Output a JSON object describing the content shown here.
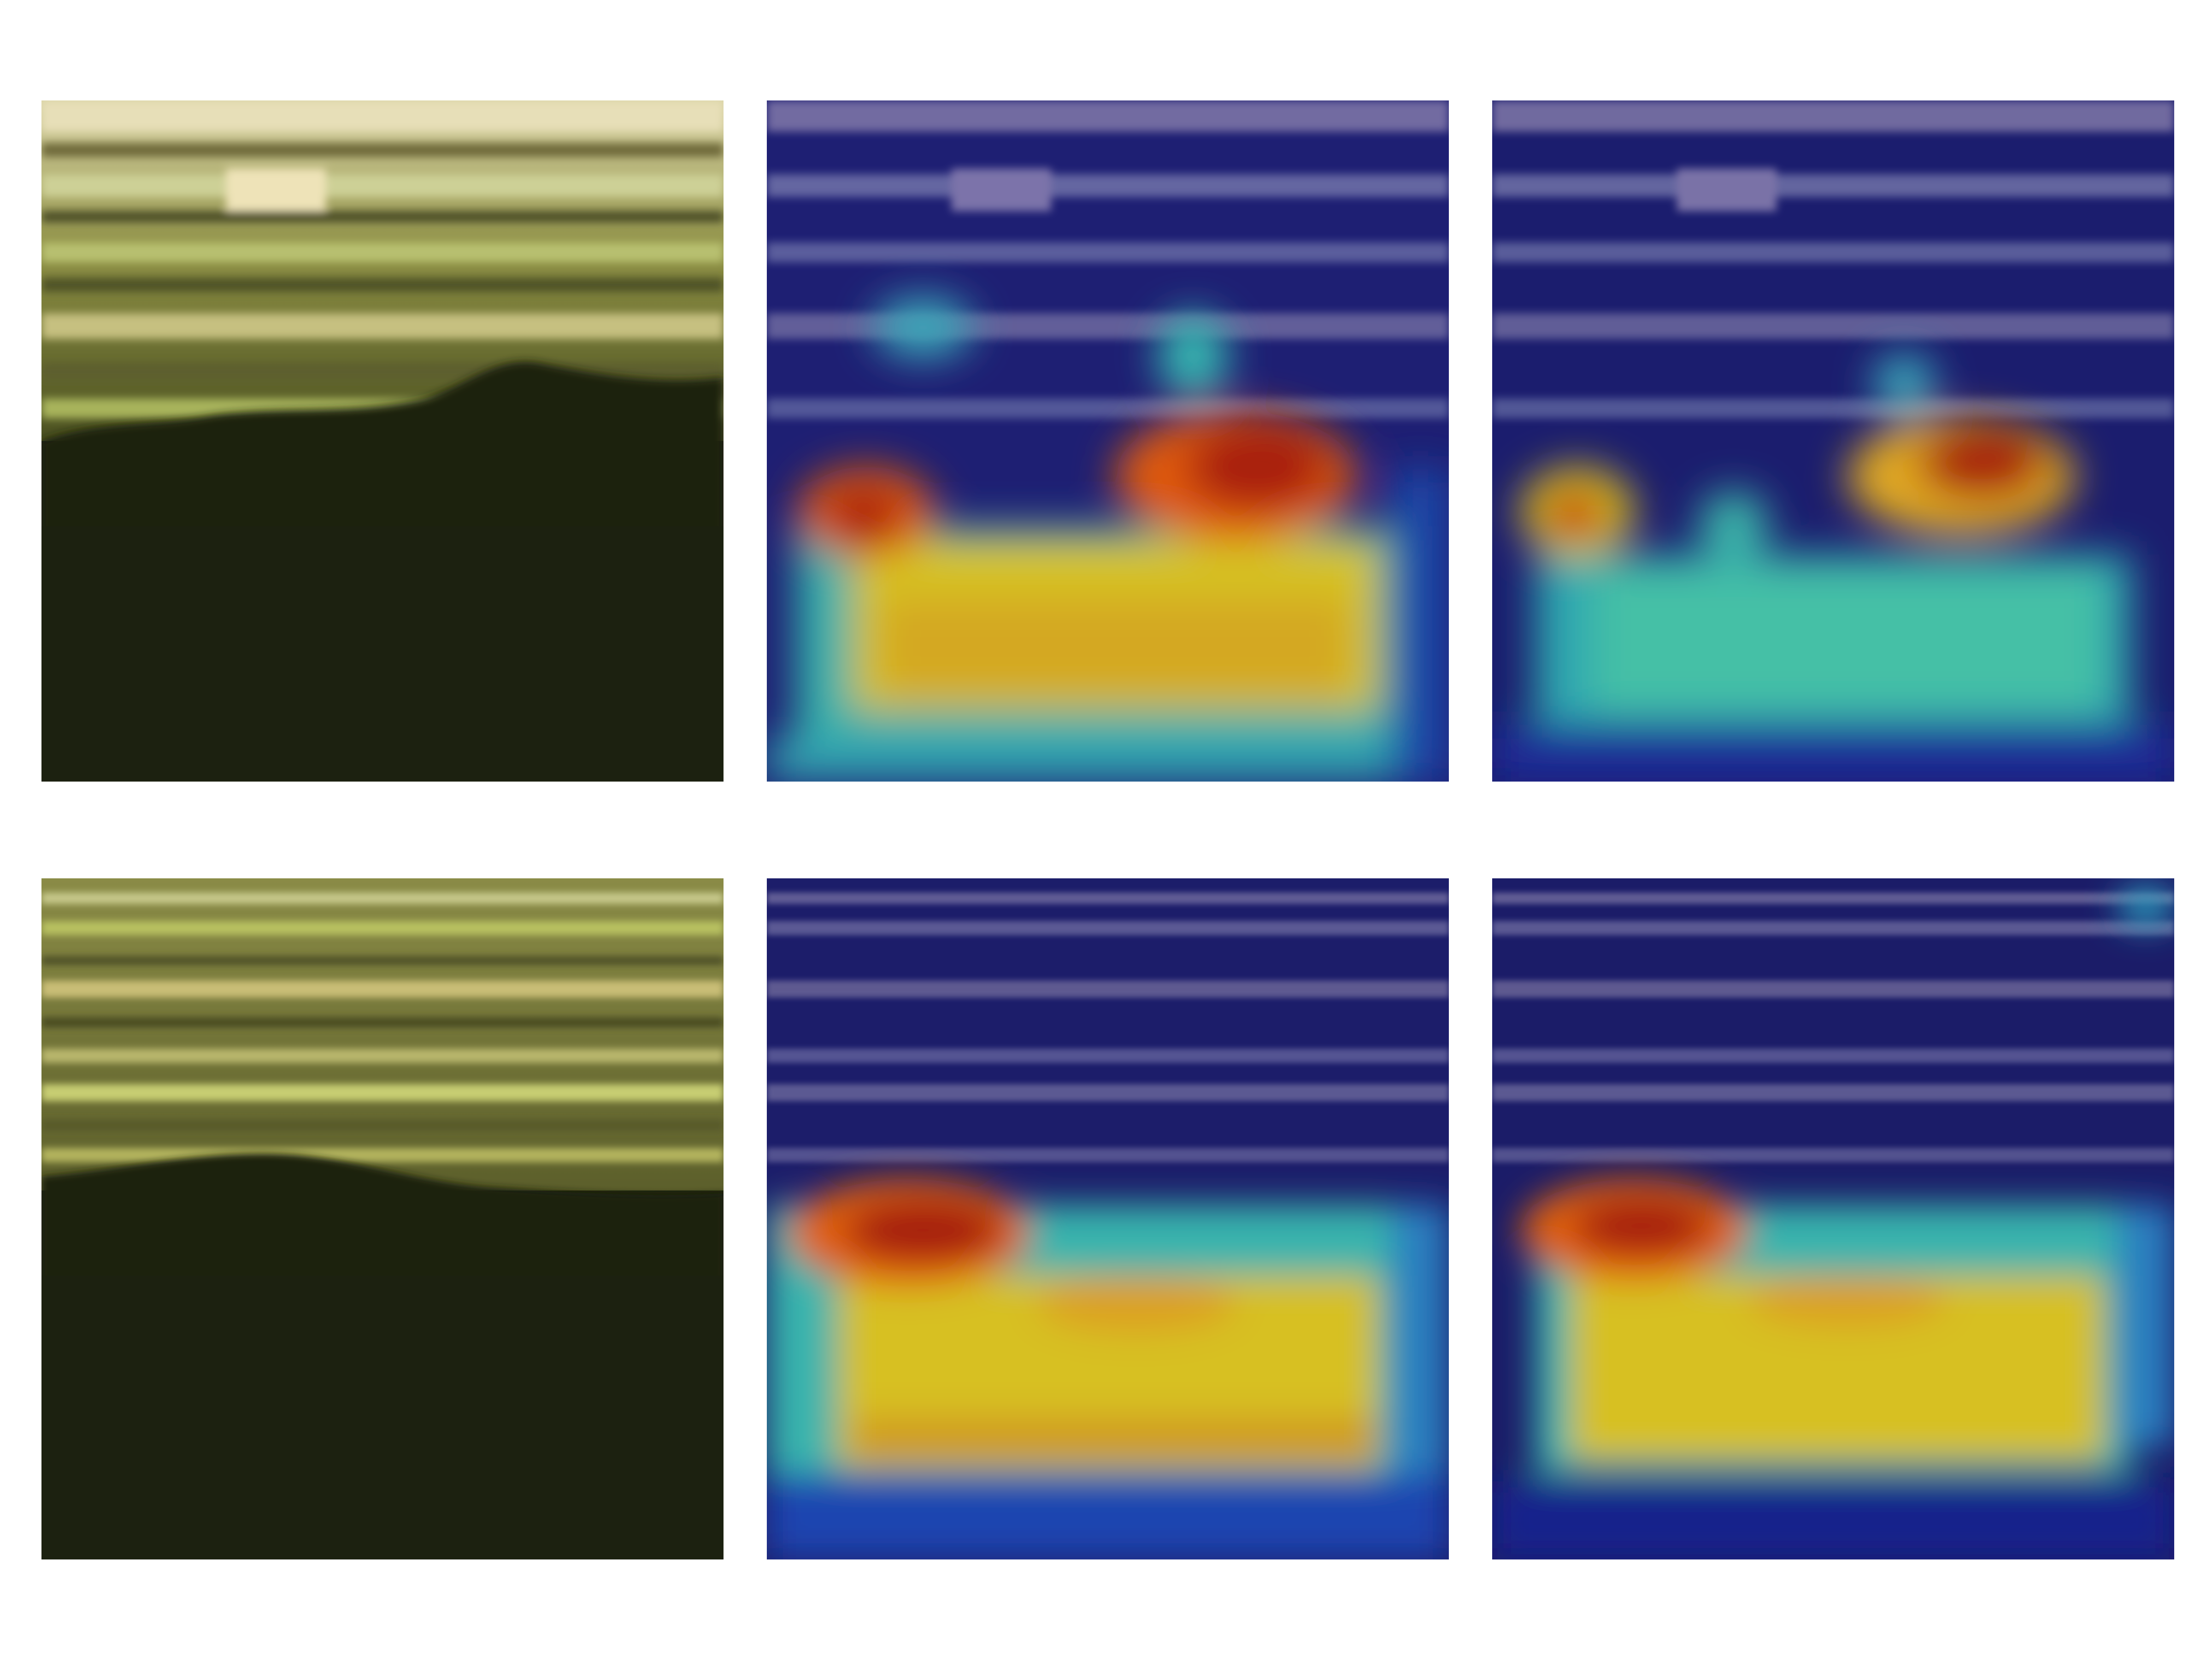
{
  "figure": {
    "rows": 2,
    "columns": 3,
    "panels": [
      {
        "row": 1,
        "column": 1,
        "kind": "original-micrograph"
      },
      {
        "row": 1,
        "column": 2,
        "kind": "heatmap-overlay"
      },
      {
        "row": 1,
        "column": 3,
        "kind": "heatmap-overlay"
      },
      {
        "row": 2,
        "column": 1,
        "kind": "original-micrograph"
      },
      {
        "row": 2,
        "column": 2,
        "kind": "heatmap-overlay"
      },
      {
        "row": 2,
        "column": 3,
        "kind": "heatmap-overlay"
      }
    ]
  },
  "colors": {
    "background": "#ffffff",
    "micrograph_dark": "#1e2310",
    "micrograph_streak": "#d8d79a",
    "heat_low": "#12127a",
    "heat_mid": "#2fb8b0",
    "heat_high_mid": "#d8c020",
    "heat_peak": "#a01010"
  }
}
